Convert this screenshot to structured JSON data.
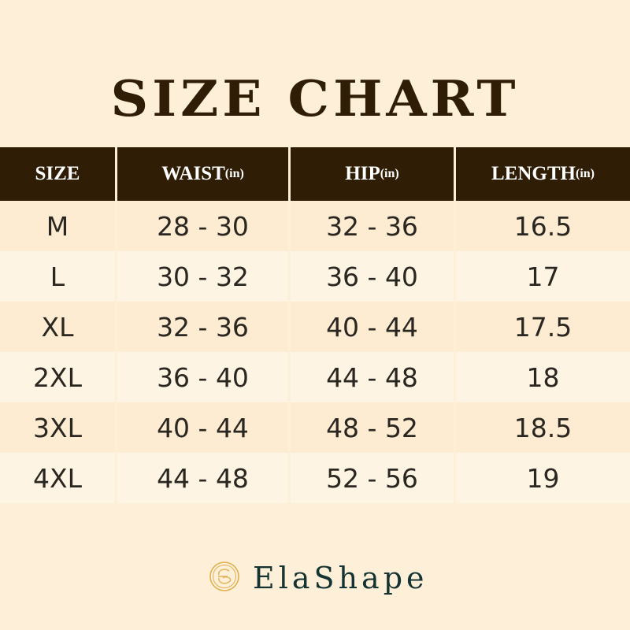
{
  "title": "SIZE CHART",
  "columns": [
    {
      "label": "SIZE",
      "unit": ""
    },
    {
      "label": "WAIST",
      "unit": "(in)"
    },
    {
      "label": "HIP",
      "unit": "(in)"
    },
    {
      "label": "LENGTH",
      "unit": "(in)"
    }
  ],
  "rows": [
    [
      "M",
      "28 - 30",
      "32 - 36",
      "16.5"
    ],
    [
      "L",
      "30 - 32",
      "36 - 40",
      "17"
    ],
    [
      "XL",
      "32 - 36",
      "40 - 44",
      "17.5"
    ],
    [
      "2XL",
      "36 - 40",
      "44 - 48",
      "18"
    ],
    [
      "3XL",
      "40 - 44",
      "48 - 52",
      "18.5"
    ],
    [
      "4XL",
      "44 - 48",
      "52 - 56",
      "19"
    ]
  ],
  "brand": {
    "name": "ElaShape",
    "logo_icon": "es-monogram-circle-icon",
    "logo_color": "#e0b04f"
  },
  "colors": {
    "header": "#2f1e05",
    "background": "#fdefd8",
    "brand_text": "#143332"
  }
}
